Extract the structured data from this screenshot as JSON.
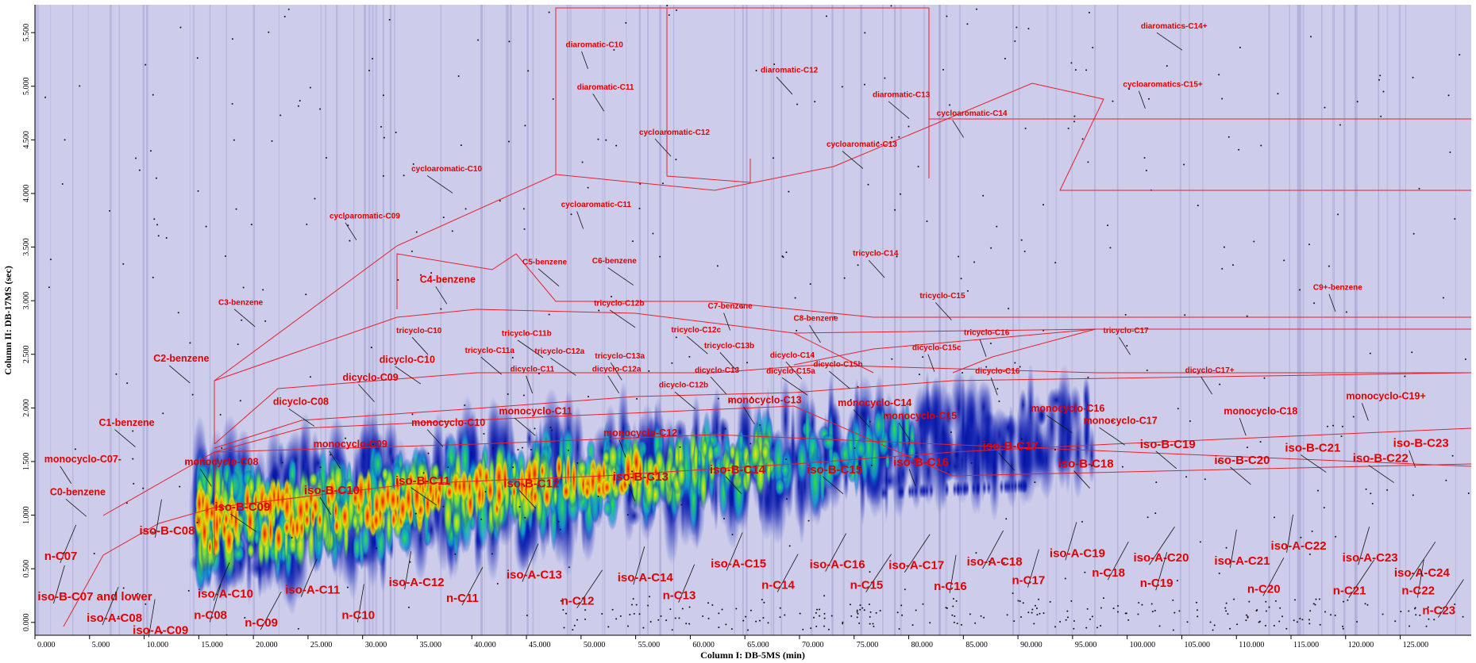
{
  "chart_data": {
    "type": "heatmap",
    "xlabel": "Column I: DB-5MS (min)",
    "ylabel": "Column II: DB-17MS (sec)",
    "xlim": [
      0,
      131.5
    ],
    "ylim": [
      -0.12,
      5.76
    ],
    "xticks": [
      {
        "value": 0,
        "label": "0.000"
      },
      {
        "value": 5,
        "label": "5.000"
      },
      {
        "value": 10,
        "label": "10.000"
      },
      {
        "value": 15,
        "label": "15.000"
      },
      {
        "value": 20,
        "label": "20.000"
      },
      {
        "value": 25,
        "label": "25.000"
      },
      {
        "value": 30,
        "label": "30.000"
      },
      {
        "value": 35,
        "label": "35.000"
      },
      {
        "value": 40,
        "label": "40.000"
      },
      {
        "value": 45,
        "label": "45.000"
      },
      {
        "value": 50,
        "label": "50.000"
      },
      {
        "value": 55,
        "label": "55.000"
      },
      {
        "value": 60,
        "label": "60.000"
      },
      {
        "value": 65,
        "label": "65.000"
      },
      {
        "value": 70,
        "label": "70.000"
      },
      {
        "value": 75,
        "label": "75.000"
      },
      {
        "value": 80,
        "label": "80.000"
      },
      {
        "value": 85,
        "label": "85.000"
      },
      {
        "value": 90,
        "label": "90.000"
      },
      {
        "value": 95,
        "label": "95.000"
      },
      {
        "value": 100,
        "label": "100.000"
      },
      {
        "value": 105,
        "label": "105.000"
      },
      {
        "value": 110,
        "label": "110.000"
      },
      {
        "value": 115,
        "label": "115.000"
      },
      {
        "value": 120,
        "label": "120.000"
      },
      {
        "value": 125,
        "label": "125.000"
      }
    ],
    "yticks": [
      {
        "value": 0,
        "label": "0.000"
      },
      {
        "value": 0.5,
        "label": "0.500"
      },
      {
        "value": 1,
        "label": "1.000"
      },
      {
        "value": 1.5,
        "label": "1.500"
      },
      {
        "value": 2,
        "label": "2.000"
      },
      {
        "value": 2.5,
        "label": "2.500"
      },
      {
        "value": 3,
        "label": "3.000"
      },
      {
        "value": 3.5,
        "label": "3.500"
      },
      {
        "value": 4,
        "label": "4.000"
      },
      {
        "value": 4.5,
        "label": "4.500"
      },
      {
        "value": 5,
        "label": "5.000"
      },
      {
        "value": 5.5,
        "label": "5.500"
      }
    ],
    "region_labels": [
      "diaromatic-C10",
      "diaromatic-C11",
      "diaromatic-C12",
      "diaromatic-C13",
      "diaromatics-C14+",
      "cycloaromatics-C15+",
      "cycloaromatic-C14",
      "cycloaromatic-C12",
      "cycloaromatic-C13",
      "cycloaromatic-C10",
      "cycloaromatic-C11",
      "cycloaromatic-C09",
      "tricyclo-C14",
      "C5-benzene",
      "C6-benzene",
      "C9+-benzene",
      "C4-benzene",
      "tricyclo-C15",
      "C3-benzene",
      "tricyclo-C12b",
      "C7-benzene",
      "C8-benzene",
      "tricyclo-C10",
      "tricyclo-C12c",
      "tricyclo-C11b",
      "tricyclo-C16",
      "tricyclo-C17",
      "tricyclo-C13b",
      "tricyclo-C11a",
      "tricyclo-C12a",
      "dicyclo-C15c",
      "tricyclo-C13a",
      "dicyclo-C14",
      "C2-benzene",
      "dicyclo-C10",
      "dicyclo-C11",
      "dicyclo-C12a",
      "dicyclo-C13",
      "dicyclo-C15b",
      "dicyclo-C15a",
      "dicyclo-C16",
      "dicyclo-C17+",
      "dicyclo-C09",
      "dicyclo-C12b",
      "dicyclo-C08",
      "monocyclo-C19+",
      "monocyclo-C13",
      "monocyclo-C14",
      "monocyclo-C11",
      "monocyclo-C16",
      "monocyclo-C18",
      "monocyclo-C15",
      "monocyclo-C10",
      "C1-benzene",
      "monocyclo-C17",
      "monocyclo-C12",
      "monocyclo-C09",
      "iso-B-C17",
      "iso-B-C19",
      "iso-B-C21",
      "iso-B-C23",
      "monocyclo-C07-",
      "iso-B-C18",
      "iso-B-C20",
      "iso-B-C22",
      "iso-B-C16",
      "monocyclo-C08",
      "iso-B-C14",
      "iso-B-C15",
      "iso-B-C11",
      "iso-B-C13",
      "iso-B-C10",
      "iso-B-C12",
      "C0-benzene",
      "iso-B-C09",
      "iso-B-C08",
      "iso-A-C19",
      "n-C07",
      "iso-A-C18",
      "iso-A-C20",
      "iso-A-C22",
      "iso-A-C23",
      "iso-A-C15",
      "iso-A-C16",
      "iso-A-C17",
      "iso-A-C21",
      "iso-A-C14",
      "iso-A-C13",
      "n-C18",
      "iso-A-C24",
      "iso-A-C12",
      "n-C17",
      "iso-A-C11",
      "n-C14",
      "n-C15",
      "n-C16",
      "n-C19",
      "iso-A-C10",
      "n-C20",
      "n-C21",
      "n-C22",
      "iso-B-C07 and lower",
      "n-C13",
      "n-C11",
      "n-C12",
      "n-C10",
      "n-C08",
      "iso-A-C08",
      "n-C09",
      "n-C23",
      "iso-A-C09"
    ]
  }
}
